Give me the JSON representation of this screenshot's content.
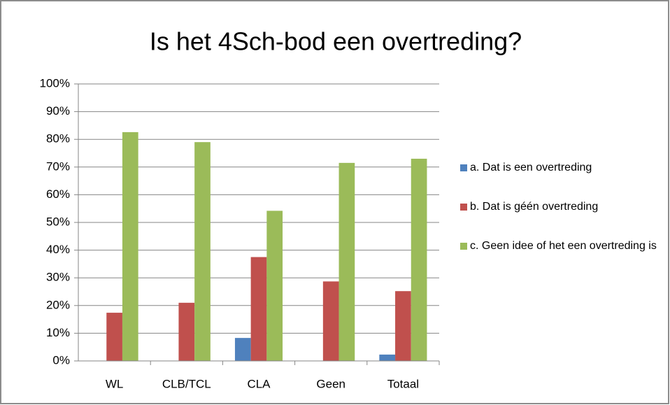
{
  "chart_data": {
    "type": "bar",
    "title": "Is het 4Sch-bod een overtreding?",
    "categories": [
      "WL",
      "CLB/TCL",
      "CLA",
      "Geen",
      "Totaal"
    ],
    "series": [
      {
        "name": "a. Dat is een overtreding",
        "color": "#4f81bd",
        "values": [
          0,
          0,
          8.3,
          0,
          2.3
        ]
      },
      {
        "name": "b. Dat is géén overtreding",
        "color": "#c0504d",
        "values": [
          17.4,
          21,
          37.5,
          28.7,
          25.2
        ]
      },
      {
        "name": "c. Geen idee of het een overtreding is",
        "color": "#9bbb59",
        "values": [
          82.6,
          79,
          54.2,
          71.5,
          73
        ]
      }
    ],
    "ylim": [
      0,
      100
    ],
    "yticks": [
      {
        "value": 0,
        "label": "0%"
      },
      {
        "value": 10,
        "label": "10%"
      },
      {
        "value": 20,
        "label": "20%"
      },
      {
        "value": 30,
        "label": "30%"
      },
      {
        "value": 40,
        "label": "40%"
      },
      {
        "value": 50,
        "label": "50%"
      },
      {
        "value": 60,
        "label": "60%"
      },
      {
        "value": 70,
        "label": "70%"
      },
      {
        "value": 80,
        "label": "80%"
      },
      {
        "value": 90,
        "label": "90%"
      },
      {
        "value": 100,
        "label": "100%"
      }
    ],
    "grid": true,
    "legend": "right"
  }
}
